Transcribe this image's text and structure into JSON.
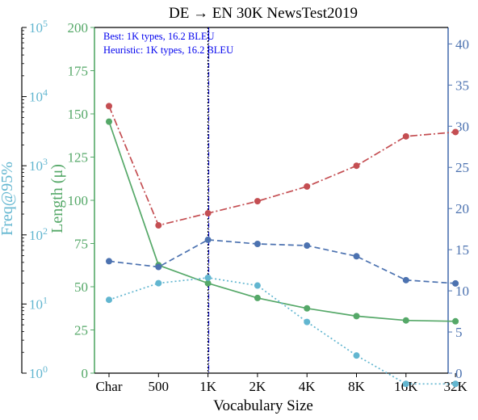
{
  "chart_data": {
    "type": "line",
    "title": "DE → EN 30K NewsTest2019",
    "xlabel": "Vocabulary Size",
    "categories": [
      "Char",
      "500",
      "1K",
      "2K",
      "4K",
      "8K",
      "16K",
      "32K"
    ],
    "annotations": [
      "Best: 1K types, 16.2 BLEU",
      "Heuristic: 1K types, 16.2 BLEU"
    ],
    "best_marker_category": "1K",
    "heuristic_marker_category": "1K",
    "axes": {
      "freq": {
        "label": "Freq@95%",
        "scale": "log",
        "range": [
          1,
          100000
        ],
        "ticks": [
          {
            "value": 1,
            "base": "10",
            "exp": "0"
          },
          {
            "value": 10,
            "base": "10",
            "exp": "1"
          },
          {
            "value": 100,
            "base": "10",
            "exp": "2"
          },
          {
            "value": 1000,
            "base": "10",
            "exp": "3"
          },
          {
            "value": 10000,
            "base": "10",
            "exp": "4"
          },
          {
            "value": 100000,
            "base": "10",
            "exp": "5"
          }
        ],
        "color": "#62b6d0"
      },
      "length": {
        "label": "Length (μ)",
        "range": [
          0,
          200
        ],
        "ticks": [
          "0",
          "25",
          "50",
          "75",
          "100",
          "125",
          "150",
          "175",
          "200"
        ],
        "color": "#55a868"
      },
      "bleu": {
        "range": [
          0,
          42
        ],
        "ticks": [
          "0",
          "5",
          "10",
          "15",
          "20",
          "25",
          "30",
          "35",
          "40"
        ],
        "color": "#4c72b0"
      }
    },
    "series": [
      {
        "axis": "length",
        "color": "#c44e52",
        "dash": "9 3 2 3",
        "values": [
          154.5,
          85.5,
          92.5,
          99.5,
          108,
          120,
          137,
          139.5
        ]
      },
      {
        "axis": "length",
        "color": "#55a868",
        "dash": "",
        "values": [
          145.5,
          62.5,
          52,
          43.5,
          37.5,
          33,
          30.5,
          30
        ]
      },
      {
        "axis": "bleu",
        "color": "#4c72b0",
        "dash": "7 4",
        "values": [
          13.6,
          12.9,
          16.2,
          15.7,
          15.5,
          14.2,
          11.3,
          10.9
        ]
      },
      {
        "axis": "freq",
        "color": "#62b6d0",
        "dash": "2 3",
        "values": [
          11.5,
          20,
          24,
          18.5,
          5.5,
          1.8,
          0.7,
          0.7
        ]
      }
    ]
  }
}
